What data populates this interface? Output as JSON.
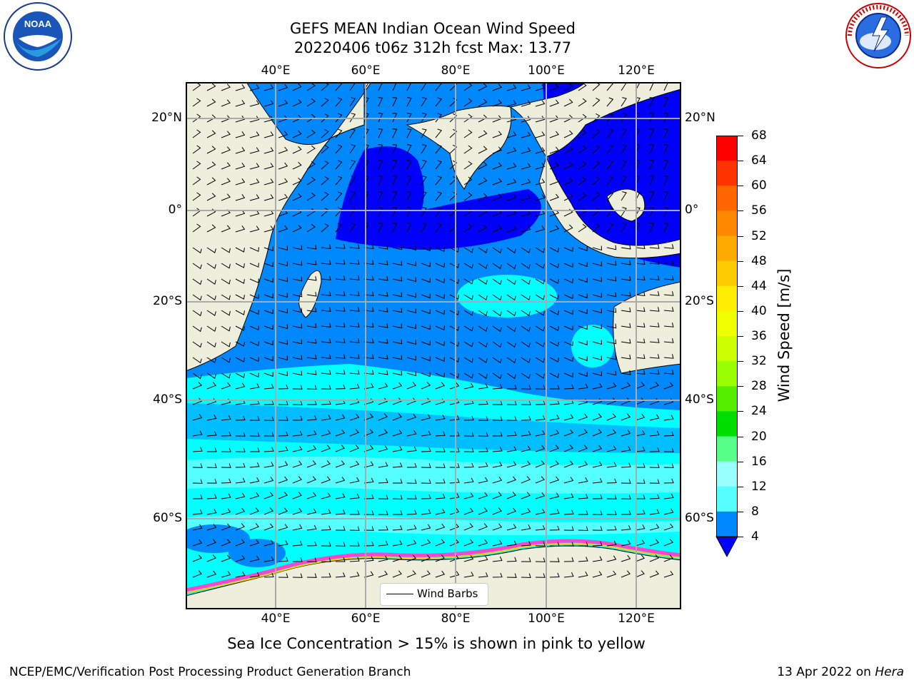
{
  "title": {
    "line1": "GEFS MEAN Indian Ocean Wind Speed",
    "line2": "20220406 t06z 312h fcst   Max: 13.77"
  },
  "logos": {
    "left": {
      "name": "noaa-logo",
      "text": "NOAA"
    },
    "right": {
      "name": "nws-logo",
      "text": "NATIONAL WEATHER SERVICE"
    }
  },
  "map": {
    "lon_labels": [
      "40°E",
      "60°E",
      "80°E",
      "100°E",
      "120°E"
    ],
    "lat_labels": [
      "20°N",
      "0°",
      "20°S",
      "40°S",
      "60°S"
    ],
    "legend_label": "Wind Barbs"
  },
  "colorbar": {
    "label": "Wind Speed [m/s]",
    "ticks": [
      "68",
      "64",
      "60",
      "56",
      "52",
      "48",
      "44",
      "40",
      "36",
      "32",
      "28",
      "24",
      "20",
      "16",
      "12",
      "8",
      "4"
    ],
    "colors": [
      "#ff0000",
      "#ff3300",
      "#ff6600",
      "#ff8800",
      "#ffaa00",
      "#ffcc00",
      "#ffee00",
      "#eeff00",
      "#ccff00",
      "#99ff00",
      "#55ee00",
      "#00dd00",
      "#00ff33",
      "#55ff88",
      "#99ffff",
      "#55ffff",
      "#00ffff",
      "#00eeff",
      "#0088ff",
      "#0000ff"
    ]
  },
  "caption": "Sea Ice Concentration > 15% is shown in pink to yellow",
  "footer": {
    "left": "NCEP/EMC/Verification Post Processing Product Generation Branch",
    "right_prefix": "13 Apr 2022 on ",
    "right_italic": "Hera"
  }
}
